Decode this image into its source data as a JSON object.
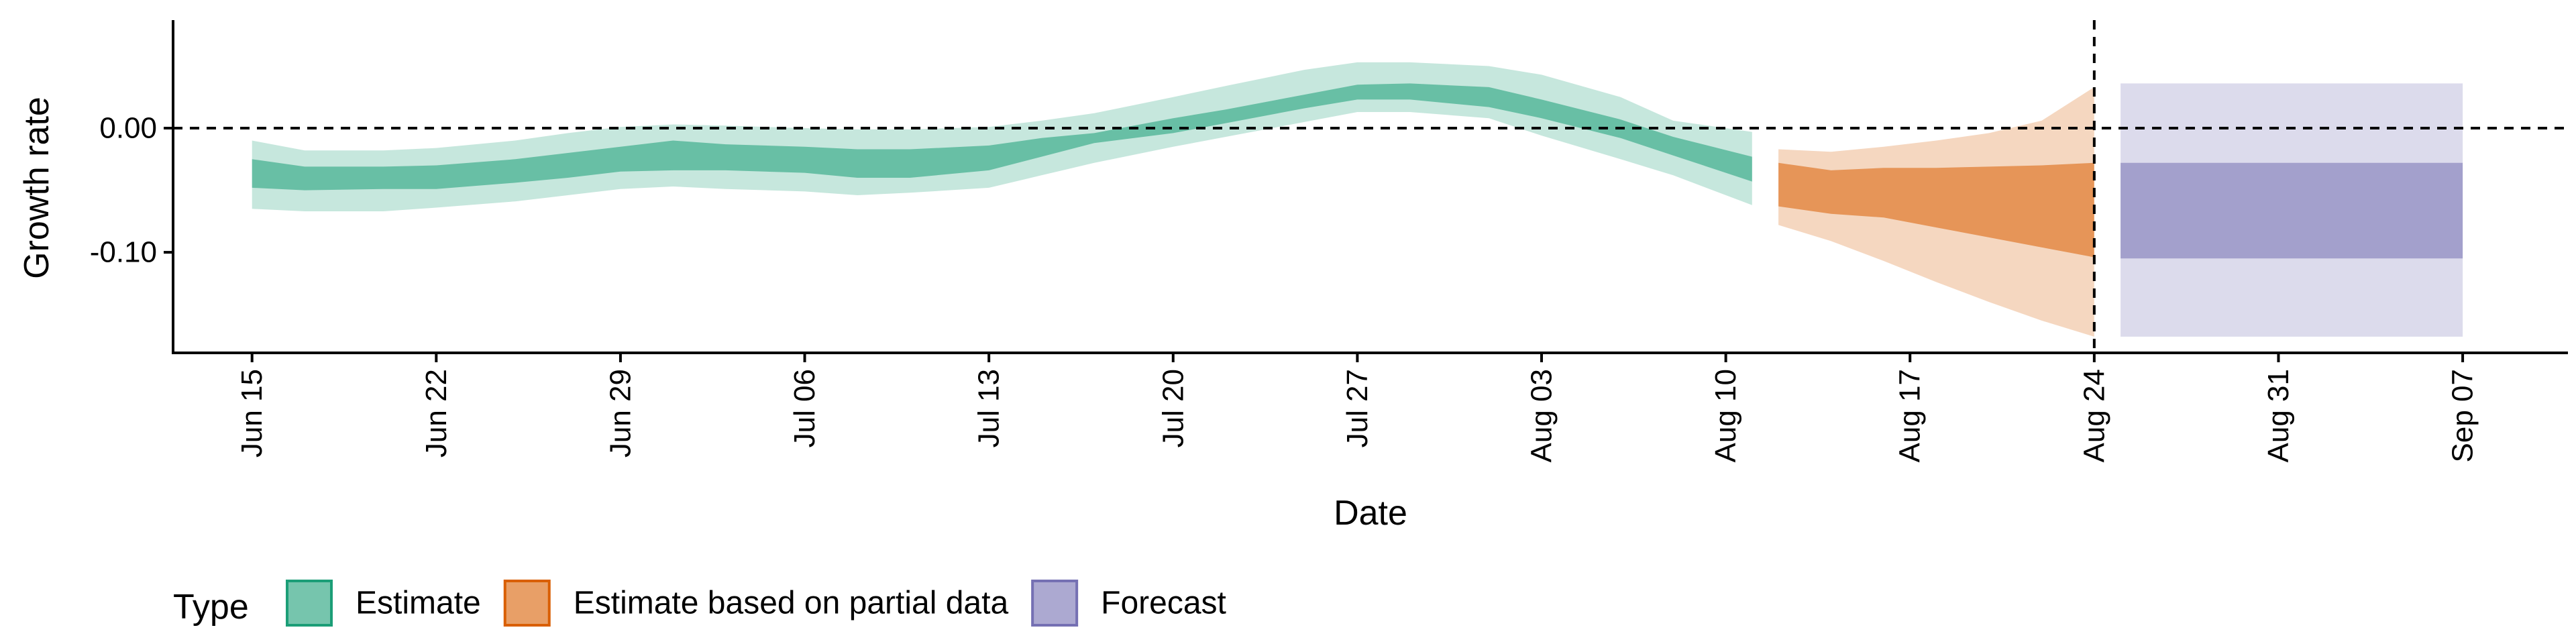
{
  "chart_data": {
    "type": "area",
    "xlabel": "Date",
    "ylabel": "Growth rate",
    "x_range": [
      "2020-06-12",
      "2020-09-11"
    ],
    "ylim": [
      -0.181,
      0.087
    ],
    "x_ticks": [
      {
        "date": "2020-06-15",
        "label": "Jun 15"
      },
      {
        "date": "2020-06-22",
        "label": "Jun 22"
      },
      {
        "date": "2020-06-29",
        "label": "Jun 29"
      },
      {
        "date": "2020-07-06",
        "label": "Jul 06"
      },
      {
        "date": "2020-07-13",
        "label": "Jul 13"
      },
      {
        "date": "2020-07-20",
        "label": "Jul 20"
      },
      {
        "date": "2020-07-27",
        "label": "Jul 27"
      },
      {
        "date": "2020-08-03",
        "label": "Aug 03"
      },
      {
        "date": "2020-08-10",
        "label": "Aug 10"
      },
      {
        "date": "2020-08-17",
        "label": "Aug 17"
      },
      {
        "date": "2020-08-24",
        "label": "Aug 24"
      },
      {
        "date": "2020-08-31",
        "label": "Aug 31"
      },
      {
        "date": "2020-09-07",
        "label": "Sep 07"
      }
    ],
    "y_ticks": [
      {
        "value": 0.0,
        "label": "0.00"
      },
      {
        "value": -0.1,
        "label": "-0.10"
      }
    ],
    "reference_lines": {
      "horizontal_y": 0.0,
      "vertical_date": "2020-08-24"
    },
    "grid": false,
    "legend": {
      "title": "Type",
      "position": "bottom-left",
      "entries": [
        {
          "label": "Estimate",
          "color": "#1b9e77"
        },
        {
          "label": "Estimate based on partial data",
          "color": "#d95f02"
        },
        {
          "label": "Forecast",
          "color": "#7570b3"
        }
      ]
    },
    "series": [
      {
        "name": "Estimate",
        "color": "#1b9e77",
        "dates": [
          "2020-06-15",
          "2020-06-17",
          "2020-06-20",
          "2020-06-22",
          "2020-06-25",
          "2020-06-27",
          "2020-06-29",
          "2020-07-01",
          "2020-07-03",
          "2020-07-06",
          "2020-07-08",
          "2020-07-10",
          "2020-07-13",
          "2020-07-15",
          "2020-07-17",
          "2020-07-20",
          "2020-07-22",
          "2020-07-25",
          "2020-07-27",
          "2020-07-29",
          "2020-08-01",
          "2020-08-03",
          "2020-08-06",
          "2020-08-08",
          "2020-08-11"
        ],
        "outer_upper": [
          -0.01,
          -0.018,
          -0.018,
          -0.016,
          -0.01,
          -0.004,
          0.001,
          0.003,
          0.002,
          0.0,
          -0.001,
          -0.001,
          0.001,
          0.006,
          0.012,
          0.025,
          0.034,
          0.047,
          0.053,
          0.053,
          0.05,
          0.043,
          0.025,
          0.006,
          -0.003
        ],
        "inner_upper": [
          -0.025,
          -0.031,
          -0.031,
          -0.03,
          -0.025,
          -0.02,
          -0.015,
          -0.01,
          -0.013,
          -0.015,
          -0.017,
          -0.017,
          -0.014,
          -0.008,
          -0.004,
          0.008,
          0.015,
          0.027,
          0.035,
          0.036,
          0.033,
          0.023,
          0.007,
          -0.007,
          -0.023
        ],
        "inner_lower": [
          -0.048,
          -0.05,
          -0.049,
          -0.049,
          -0.044,
          -0.04,
          -0.035,
          -0.034,
          -0.034,
          -0.036,
          -0.04,
          -0.04,
          -0.034,
          -0.023,
          -0.012,
          -0.004,
          0.004,
          0.016,
          0.023,
          0.023,
          0.017,
          0.008,
          -0.008,
          -0.022,
          -0.043
        ],
        "outer_lower": [
          -0.065,
          -0.067,
          -0.067,
          -0.064,
          -0.059,
          -0.054,
          -0.049,
          -0.047,
          -0.049,
          -0.051,
          -0.054,
          -0.052,
          -0.048,
          -0.038,
          -0.028,
          -0.015,
          -0.007,
          0.005,
          0.013,
          0.013,
          0.008,
          -0.006,
          -0.025,
          -0.038,
          -0.062
        ]
      },
      {
        "name": "Estimate based on partial data",
        "color": "#d95f02",
        "dates": [
          "2020-08-12",
          "2020-08-14",
          "2020-08-16",
          "2020-08-18",
          "2020-08-20",
          "2020-08-22",
          "2020-08-24"
        ],
        "outer_upper": [
          -0.017,
          -0.019,
          -0.015,
          -0.01,
          -0.004,
          0.006,
          0.033
        ],
        "inner_upper": [
          -0.028,
          -0.034,
          -0.032,
          -0.032,
          -0.031,
          -0.03,
          -0.028
        ],
        "inner_lower": [
          -0.063,
          -0.069,
          -0.072,
          -0.08,
          -0.088,
          -0.096,
          -0.104
        ],
        "outer_lower": [
          -0.078,
          -0.091,
          -0.107,
          -0.124,
          -0.14,
          -0.155,
          -0.168
        ]
      },
      {
        "name": "Forecast",
        "color": "#7570b3",
        "dates": [
          "2020-08-25",
          "2020-09-07"
        ],
        "outer_upper": [
          0.036,
          0.036
        ],
        "inner_upper": [
          -0.028,
          -0.028
        ],
        "inner_lower": [
          -0.105,
          -0.105
        ],
        "outer_lower": [
          -0.168,
          -0.168
        ]
      }
    ]
  }
}
